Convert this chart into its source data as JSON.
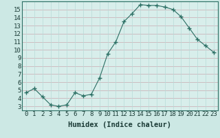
{
  "x": [
    0,
    1,
    2,
    3,
    4,
    5,
    6,
    7,
    8,
    9,
    10,
    11,
    12,
    13,
    14,
    15,
    16,
    17,
    18,
    19,
    20,
    21,
    22,
    23
  ],
  "y": [
    4.7,
    5.2,
    4.2,
    3.2,
    3.0,
    3.2,
    4.7,
    4.3,
    4.5,
    6.5,
    9.5,
    11.0,
    13.5,
    14.5,
    15.6,
    15.5,
    15.5,
    15.3,
    15.0,
    14.1,
    12.7,
    11.3,
    10.5,
    9.7
  ],
  "xlabel": "Humidex (Indice chaleur)",
  "xlim": [
    -0.5,
    23.5
  ],
  "ylim": [
    2.5,
    16.0
  ],
  "xtick_labels": [
    "0",
    "1",
    "2",
    "3",
    "4",
    "5",
    "6",
    "7",
    "8",
    "9",
    "10",
    "11",
    "12",
    "13",
    "14",
    "15",
    "16",
    "17",
    "18",
    "19",
    "20",
    "21",
    "22",
    "23"
  ],
  "ytick_values": [
    3,
    4,
    5,
    6,
    7,
    8,
    9,
    10,
    11,
    12,
    13,
    14,
    15
  ],
  "line_color": "#2a6e63",
  "marker_color": "#2a6e63",
  "bg_color": "#cce8e4",
  "plot_bg_color": "#d8eeeb",
  "grid_color_major": "#c9a8b0",
  "grid_color_minor": "#b8dbd8",
  "xlabel_color": "#1a3a35",
  "tick_color": "#1a3a35",
  "font_size_xlabel": 7.5,
  "font_size_ticks": 6.5
}
